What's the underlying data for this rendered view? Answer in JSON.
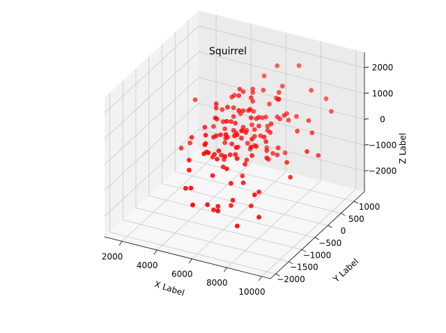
{
  "chart_data": {
    "type": "scatter3d",
    "title": "Squirrel",
    "xlabel": "X Label",
    "ylabel": "Y Label",
    "zlabel": "Z Label",
    "xticks": [
      "2000",
      "4000",
      "6000",
      "8000",
      "10000"
    ],
    "yticks": [
      "−2000",
      "−1500",
      "−1000",
      "−500",
      "0",
      "500",
      "1000"
    ],
    "zticks": [
      "−2000",
      "−1000",
      "0",
      "1000",
      "2000"
    ],
    "xlim": [
      1000,
      10500
    ],
    "ylim": [
      -2200,
      1400
    ],
    "zlim": [
      -2800,
      2600
    ],
    "grid": true,
    "marker_color": "#ff0000",
    "series": [
      {
        "points": [
          [
            2600,
            0,
            -950
          ],
          [
            2400,
            -200,
            -1000
          ],
          [
            2300,
            400,
            300
          ],
          [
            3600,
            -600,
            0
          ],
          [
            3900,
            -900,
            -550
          ],
          [
            4200,
            -1100,
            -700
          ],
          [
            3800,
            100,
            -200
          ],
          [
            4000,
            300,
            300
          ],
          [
            4400,
            -200,
            900
          ],
          [
            4500,
            0,
            200
          ],
          [
            4600,
            -700,
            -300
          ],
          [
            4700,
            -500,
            100
          ],
          [
            4800,
            200,
            600
          ],
          [
            5000,
            -300,
            -900
          ],
          [
            5100,
            -100,
            400
          ],
          [
            5200,
            300,
            1200
          ],
          [
            5300,
            -600,
            -400
          ],
          [
            5400,
            100,
            -100
          ],
          [
            5500,
            -200,
            500
          ],
          [
            5600,
            400,
            800
          ],
          [
            5700,
            -800,
            -600
          ],
          [
            5800,
            0,
            0
          ],
          [
            5900,
            -400,
            300
          ],
          [
            6000,
            200,
            -300
          ],
          [
            6100,
            -100,
            1000
          ],
          [
            6200,
            500,
            200
          ],
          [
            6300,
            -300,
            -700
          ],
          [
            6400,
            100,
            600
          ],
          [
            6500,
            -600,
            -1000
          ],
          [
            6600,
            300,
            100
          ],
          [
            6700,
            -200,
            -200
          ],
          [
            6800,
            600,
            900
          ],
          [
            6900,
            -500,
            400
          ],
          [
            7000,
            0,
            -500
          ],
          [
            7100,
            400,
            1400
          ],
          [
            7200,
            -700,
            0
          ],
          [
            7300,
            200,
            -800
          ],
          [
            7400,
            -100,
            700
          ],
          [
            7500,
            500,
            300
          ],
          [
            7600,
            -400,
            -300
          ],
          [
            4300,
            -1300,
            -1200
          ],
          [
            4900,
            -1500,
            -900
          ],
          [
            5300,
            -1700,
            -1300
          ],
          [
            5700,
            -1400,
            -1500
          ],
          [
            6000,
            -1200,
            -1700
          ],
          [
            6600,
            -1600,
            -1400
          ],
          [
            7000,
            -1300,
            -1200
          ],
          [
            6300,
            -900,
            -1900
          ],
          [
            5600,
            -1100,
            -2000
          ],
          [
            7600,
            -1000,
            -1600
          ],
          [
            5000,
            800,
            800
          ],
          [
            5500,
            900,
            1300
          ],
          [
            6100,
            1000,
            1700
          ],
          [
            6700,
            800,
            1200
          ],
          [
            7200,
            1100,
            1800
          ],
          [
            4100,
            700,
            500
          ],
          [
            7800,
            600,
            400
          ],
          [
            8300,
            300,
            200
          ],
          [
            8800,
            400,
            600
          ],
          [
            9300,
            200,
            400
          ],
          [
            8600,
            -300,
            -400
          ],
          [
            9100,
            -500,
            -700
          ],
          [
            9600,
            -200,
            100
          ],
          [
            9800,
            100,
            -300
          ],
          [
            8200,
            900,
            1200
          ],
          [
            8900,
            1000,
            900
          ],
          [
            9500,
            800,
            700
          ],
          [
            7900,
            -900,
            -1100
          ],
          [
            8500,
            -1300,
            -1600
          ],
          [
            7700,
            -1600,
            -1800
          ],
          [
            8100,
            -1200,
            -900
          ],
          [
            5200,
            -300,
            0
          ],
          [
            5400,
            -200,
            200
          ],
          [
            5600,
            -400,
            -100
          ],
          [
            5800,
            -100,
            300
          ],
          [
            6000,
            -300,
            100
          ],
          [
            5100,
            0,
            500
          ],
          [
            5300,
            200,
            -200
          ],
          [
            5500,
            100,
            700
          ],
          [
            5700,
            300,
            0
          ],
          [
            5900,
            0,
            -400
          ],
          [
            6100,
            200,
            400
          ],
          [
            6300,
            0,
            200
          ],
          [
            6500,
            100,
            -100
          ],
          [
            6700,
            -100,
            500
          ],
          [
            6900,
            200,
            0
          ],
          [
            5000,
            -600,
            300
          ],
          [
            5200,
            -800,
            -200
          ],
          [
            5400,
            -700,
            500
          ],
          [
            5600,
            -900,
            100
          ],
          [
            5800,
            -600,
            -300
          ],
          [
            6200,
            -700,
            600
          ],
          [
            6400,
            -800,
            0
          ],
          [
            6600,
            -900,
            400
          ],
          [
            6800,
            -700,
            -400
          ],
          [
            7000,
            -600,
            200
          ],
          [
            4600,
            -300,
            600
          ],
          [
            4800,
            -100,
            -300
          ],
          [
            4700,
            200,
            1000
          ],
          [
            4900,
            400,
            200
          ],
          [
            5100,
            500,
            -500
          ],
          [
            5300,
            600,
            900
          ],
          [
            5500,
            500,
            300
          ],
          [
            5700,
            700,
            -100
          ],
          [
            5900,
            600,
            1100
          ],
          [
            6100,
            700,
            500
          ],
          [
            6300,
            500,
            -300
          ],
          [
            6500,
            700,
            800
          ],
          [
            6700,
            600,
            200
          ],
          [
            6900,
            500,
            1000
          ],
          [
            7100,
            700,
            300
          ],
          [
            7300,
            300,
            500
          ],
          [
            7500,
            100,
            -400
          ],
          [
            7700,
            200,
            800
          ],
          [
            7400,
            -300,
            200
          ],
          [
            7600,
            -500,
            600
          ],
          [
            4400,
            -600,
            -100
          ],
          [
            4500,
            -400,
            -800
          ],
          [
            4600,
            0,
            -600
          ],
          [
            4800,
            -900,
            200
          ],
          [
            5000,
            -1000,
            700
          ],
          [
            5200,
            -1200,
            200
          ],
          [
            5400,
            -1000,
            -800
          ],
          [
            5600,
            -1300,
            400
          ],
          [
            5800,
            -1100,
            0
          ],
          [
            6000,
            -900,
            800
          ],
          [
            6200,
            -1000,
            -400
          ],
          [
            6400,
            -1200,
            300
          ],
          [
            6600,
            -1100,
            -800
          ],
          [
            6800,
            -1000,
            100
          ],
          [
            7000,
            -900,
            -900
          ],
          [
            5300,
            100,
            1500
          ],
          [
            5700,
            -200,
            1600
          ],
          [
            6100,
            0,
            1400
          ],
          [
            6500,
            -300,
            1300
          ],
          [
            4700,
            -400,
            1300
          ],
          [
            5100,
            -700,
            1100
          ],
          [
            5500,
            -500,
            1400
          ],
          [
            5900,
            -800,
            1200
          ],
          [
            6300,
            -600,
            1500
          ],
          [
            6700,
            -400,
            1100
          ],
          [
            4900,
            300,
            -1000
          ],
          [
            5300,
            500,
            -1200
          ],
          [
            5700,
            400,
            -900
          ],
          [
            6100,
            600,
            -1100
          ],
          [
            6500,
            400,
            -1300
          ],
          [
            6900,
            300,
            -900
          ],
          [
            7300,
            500,
            -1000
          ],
          [
            4500,
            500,
            -700
          ],
          [
            4300,
            200,
            -300
          ],
          [
            4200,
            -500,
            400
          ]
        ]
      }
    ]
  }
}
